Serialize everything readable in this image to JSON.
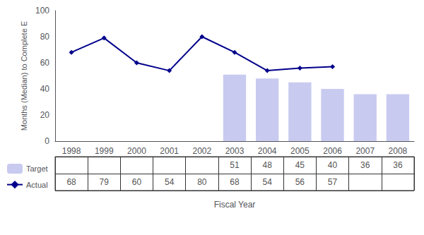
{
  "chart_data": {
    "type": "bar",
    "categories": [
      "1998",
      "1999",
      "2000",
      "2001",
      "2002",
      "2003",
      "2004",
      "2005",
      "2006",
      "2007",
      "2008"
    ],
    "series": [
      {
        "name": "Target",
        "type": "bar",
        "color": "#c8caf0",
        "values": [
          null,
          null,
          null,
          null,
          null,
          51,
          48,
          45,
          40,
          36,
          36
        ]
      },
      {
        "name": "Actual",
        "type": "line",
        "color": "#00008B",
        "marker": "diamond",
        "values": [
          68,
          79,
          60,
          54,
          80,
          68,
          54,
          56,
          57,
          null,
          null
        ]
      }
    ],
    "ylabel": "Months (Median) to Complete E",
    "xlabel": "Fiscal Year",
    "ylim": [
      0,
      100
    ],
    "yticks": [
      0,
      20,
      40,
      60,
      80,
      100
    ],
    "grid": false,
    "legend": "bottom",
    "data_labels": true
  }
}
